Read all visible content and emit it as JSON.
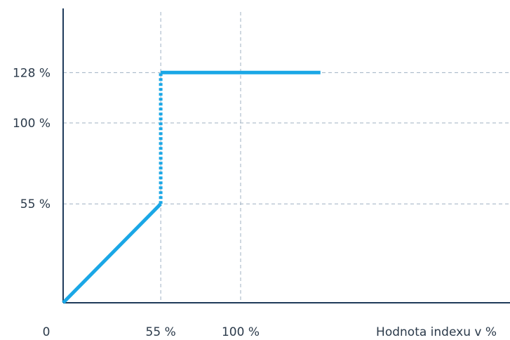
{
  "chart_data": {
    "type": "line",
    "title": "",
    "xlabel": "Hodnota indexu v %",
    "ylabel": "",
    "xlim": [
      0,
      165
    ],
    "ylim": [
      0,
      140
    ],
    "x_ticks": [
      {
        "value": 0,
        "label": "0"
      },
      {
        "value": 55,
        "label": "55 %"
      },
      {
        "value": 100,
        "label": "100 %"
      }
    ],
    "y_ticks": [
      {
        "value": 55,
        "label": "55 %"
      },
      {
        "value": 100,
        "label": "100 %"
      },
      {
        "value": 128,
        "label": "128 %"
      }
    ],
    "grid": true,
    "series": [
      {
        "style": "solid",
        "points": [
          [
            0,
            0
          ],
          [
            55,
            55
          ]
        ]
      },
      {
        "style": "dotted",
        "points": [
          [
            55,
            55
          ],
          [
            55,
            128
          ]
        ]
      },
      {
        "style": "solid",
        "points": [
          [
            55,
            128
          ],
          [
            145,
            128
          ]
        ]
      }
    ],
    "colors": {
      "line": "#1aa7e6",
      "axis": "#1f3b5a",
      "grid": "#9fb0c2",
      "text": "#2b3a4a"
    }
  }
}
